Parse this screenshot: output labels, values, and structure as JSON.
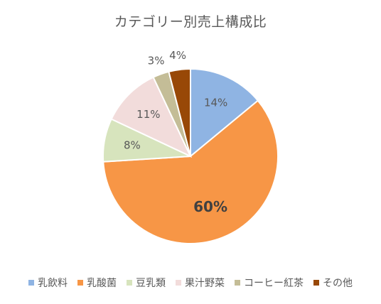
{
  "chart_data": {
    "type": "pie",
    "title": "カテゴリー別売上構成比",
    "categories": [
      "乳飲料",
      "乳酸菌",
      "豆乳類",
      "果汁野菜",
      "コーヒー紅茶",
      "その他"
    ],
    "values": [
      14,
      60,
      8,
      11,
      3,
      4
    ],
    "labels": [
      "14%",
      "60%",
      "8%",
      "11%",
      "3%",
      "4%"
    ],
    "colors": [
      "#8FB4E3",
      "#F79646",
      "#D7E4BD",
      "#F2DCDB",
      "#C4BD97",
      "#984807"
    ],
    "emphasized_label": "60%",
    "legend_position": "bottom",
    "start_angle_deg": 0,
    "direction": "clockwise"
  }
}
